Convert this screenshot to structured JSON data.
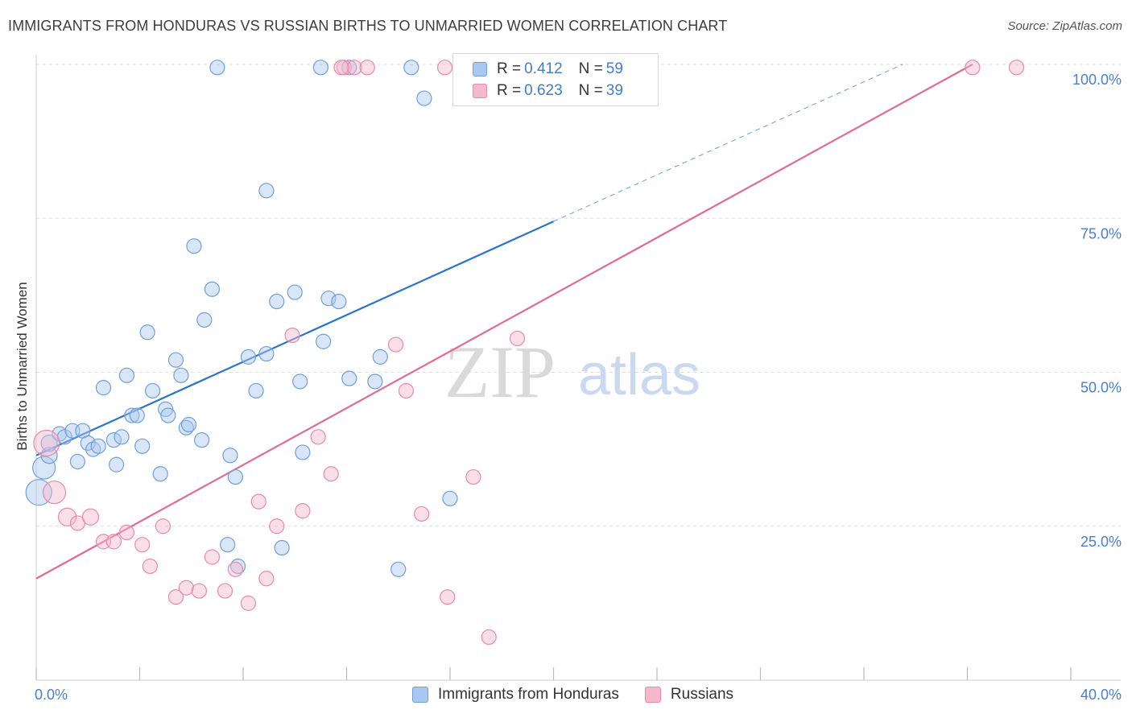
{
  "title": "IMMIGRANTS FROM HONDURAS VS RUSSIAN BIRTHS TO UNMARRIED WOMEN CORRELATION CHART",
  "source": "Source: ZipAtlas.com",
  "watermark": {
    "zip": "ZIP",
    "atlas": "atlas"
  },
  "legend": {
    "r_label": "R =",
    "n_label": "N =",
    "series": [
      {
        "name": "Immigrants from Honduras",
        "r": "0.412",
        "n": "59",
        "color": "#a9c8ef",
        "stroke": "#6f9fdc"
      },
      {
        "name": "Russians",
        "r": "0.623",
        "n": "39",
        "color": "#f6b8cb",
        "stroke": "#e88aa8"
      }
    ]
  },
  "chart_data": {
    "type": "scatter",
    "title": "IMMIGRANTS FROM HONDURAS VS RUSSIAN BIRTHS TO UNMARRIED WOMEN CORRELATION CHART",
    "xlabel": "",
    "ylabel": "Births to Unmarried Women",
    "xlim": [
      0,
      40
    ],
    "ylim": [
      0,
      100
    ],
    "x_tick_labels": [
      "0.0%",
      "40.0%"
    ],
    "y_ticks": [
      25,
      50,
      75,
      100
    ],
    "y_tick_labels": [
      "25.0%",
      "50.0%",
      "75.0%",
      "100.0%"
    ],
    "series": [
      {
        "name": "Immigrants from Honduras",
        "color": "#a9c8ef",
        "stroke": "#6f9fdc",
        "points": [
          [
            0.1,
            30.5,
            16
          ],
          [
            0.3,
            34.5,
            14
          ],
          [
            0.5,
            36.5,
            10
          ],
          [
            0.5,
            38.5,
            10
          ],
          [
            0.9,
            40,
            9
          ],
          [
            1.1,
            39.5,
            9
          ],
          [
            1.4,
            40.5,
            9
          ],
          [
            1.6,
            35.5,
            9
          ],
          [
            1.8,
            40.5,
            9
          ],
          [
            2.0,
            38.5,
            9
          ],
          [
            2.2,
            37.5,
            9
          ],
          [
            2.4,
            38,
            9
          ],
          [
            2.6,
            47.5,
            9
          ],
          [
            3.0,
            39,
            9
          ],
          [
            3.1,
            35,
            9
          ],
          [
            3.3,
            39.5,
            9
          ],
          [
            3.5,
            49.5,
            9
          ],
          [
            3.7,
            43,
            9
          ],
          [
            3.9,
            43,
            9
          ],
          [
            4.1,
            38,
            9
          ],
          [
            4.3,
            56.5,
            9
          ],
          [
            4.5,
            47,
            9
          ],
          [
            4.8,
            33.5,
            9
          ],
          [
            5.0,
            44,
            9
          ],
          [
            5.1,
            43,
            9
          ],
          [
            5.4,
            52,
            9
          ],
          [
            5.6,
            49.5,
            9
          ],
          [
            5.8,
            41,
            9
          ],
          [
            5.9,
            41.5,
            9
          ],
          [
            6.1,
            70.5,
            9
          ],
          [
            6.4,
            39,
            9
          ],
          [
            6.5,
            58.5,
            9
          ],
          [
            6.8,
            63.5,
            9
          ],
          [
            7.0,
            99.5,
            9
          ],
          [
            7.4,
            22,
            9
          ],
          [
            7.5,
            36.5,
            9
          ],
          [
            7.7,
            33,
            9
          ],
          [
            7.8,
            18.5,
            9
          ],
          [
            8.2,
            52.5,
            9
          ],
          [
            8.5,
            47,
            9
          ],
          [
            8.9,
            53,
            9
          ],
          [
            8.9,
            79.5,
            9
          ],
          [
            9.3,
            61.5,
            9
          ],
          [
            9.5,
            21.5,
            9
          ],
          [
            10.0,
            63,
            9
          ],
          [
            10.2,
            48.5,
            9
          ],
          [
            10.3,
            37,
            9
          ],
          [
            11.0,
            99.5,
            9
          ],
          [
            11.1,
            55,
            9
          ],
          [
            11.3,
            62,
            9
          ],
          [
            11.7,
            61.5,
            9
          ],
          [
            12.1,
            99.5,
            9
          ],
          [
            12.1,
            49,
            9
          ],
          [
            13.1,
            48.5,
            9
          ],
          [
            13.3,
            52.5,
            9
          ],
          [
            14.0,
            18,
            9
          ],
          [
            14.5,
            99.5,
            9
          ],
          [
            15.0,
            94.5,
            9
          ],
          [
            16.0,
            29.5,
            9
          ]
        ]
      },
      {
        "name": "Russians",
        "color": "#f6b8cb",
        "stroke": "#e88aa8",
        "points": [
          [
            0.4,
            38.5,
            16
          ],
          [
            0.7,
            30.5,
            14
          ],
          [
            1.2,
            26.5,
            11
          ],
          [
            1.6,
            25.5,
            9
          ],
          [
            2.1,
            26.5,
            10
          ],
          [
            2.6,
            22.5,
            9
          ],
          [
            3.0,
            22.5,
            9
          ],
          [
            3.5,
            24,
            9
          ],
          [
            4.1,
            22,
            9
          ],
          [
            4.4,
            18.5,
            9
          ],
          [
            4.9,
            25,
            9
          ],
          [
            5.4,
            13.5,
            9
          ],
          [
            5.8,
            15,
            9
          ],
          [
            6.3,
            14.5,
            9
          ],
          [
            6.8,
            20,
            9
          ],
          [
            7.3,
            14.5,
            9
          ],
          [
            7.7,
            18,
            9
          ],
          [
            8.2,
            12.5,
            9
          ],
          [
            8.6,
            29,
            9
          ],
          [
            8.9,
            16.5,
            9
          ],
          [
            9.3,
            25,
            9
          ],
          [
            9.9,
            56,
            9
          ],
          [
            10.3,
            27.5,
            9
          ],
          [
            10.9,
            39.5,
            9
          ],
          [
            11.4,
            33.5,
            9
          ],
          [
            11.9,
            99.5,
            9
          ],
          [
            12.3,
            99.5,
            9
          ],
          [
            12.8,
            99.5,
            9
          ],
          [
            13.9,
            54.5,
            9
          ],
          [
            14.3,
            47,
            9
          ],
          [
            14.9,
            27,
            9
          ],
          [
            15.8,
            99.5,
            9
          ],
          [
            15.9,
            13.5,
            9
          ],
          [
            16.9,
            33,
            9
          ],
          [
            17.5,
            7,
            9
          ],
          [
            18.6,
            55.5,
            9
          ],
          [
            36.2,
            99.5,
            9
          ],
          [
            37.9,
            99.5,
            9
          ],
          [
            11.8,
            99.5,
            9
          ]
        ]
      }
    ],
    "trend_lines": [
      {
        "series": "Immigrants from Honduras",
        "x_start": 0,
        "y_start": 36.5,
        "x_end": 20,
        "y_end": 74.5,
        "dashed_to_x": 33.5,
        "dashed_to_y": 100,
        "color": "#2a74d0"
      },
      {
        "series": "Russians",
        "x_start": 0,
        "y_start": 16.5,
        "x_end": 36.2,
        "y_end": 100,
        "color": "#e06c94"
      }
    ]
  }
}
